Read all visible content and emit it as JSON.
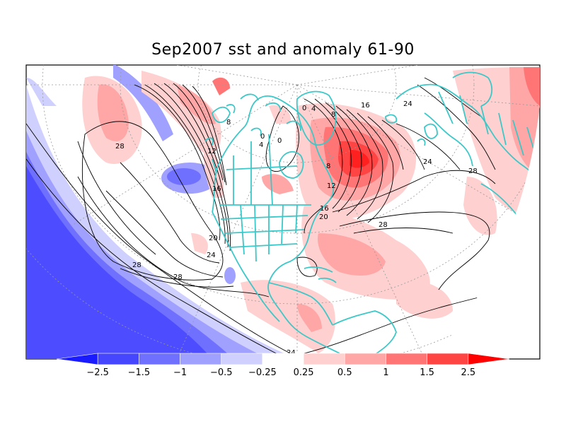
{
  "title": "Sep2007 sst and anomaly 61-90",
  "colors": {
    "coast": "#3cc8c8",
    "contour": "#000000",
    "grid": "#9a9a9a",
    "frame": "#000000"
  },
  "colorbar": {
    "levels": [
      "-2.5",
      "-1.5",
      "-1",
      "-0.5",
      "-0.25",
      "0.25",
      "0.5",
      "1",
      "1.5",
      "2.5"
    ],
    "colors": [
      "#1a1aff",
      "#4646ff",
      "#7070ff",
      "#a0a0ff",
      "#d0d0ff",
      "#ffffff",
      "#ffd0d0",
      "#ffa6a6",
      "#ff7575",
      "#ff4444",
      "#ff0000"
    ]
  },
  "contour_labels": {
    "pac_28": "28",
    "pac_12": "12",
    "pac_16": "16",
    "pac_20": "20",
    "pac_24": "24",
    "pac_28b": "28",
    "pac_28c": "28",
    "pac_24b": "24",
    "arc_8": "8",
    "arc_0a": "0",
    "arc_4a": "4",
    "arc_0b": "0",
    "atl_0": "0",
    "atl_4": "4",
    "atl_8": "8",
    "atl_16": "16",
    "hud_8": "8",
    "atl_12": "12",
    "atl_16b": "16",
    "atl_20": "20",
    "atl_24": "24",
    "atl_28": "28",
    "atl_28b": "28",
    "atl_24b": "24"
  }
}
